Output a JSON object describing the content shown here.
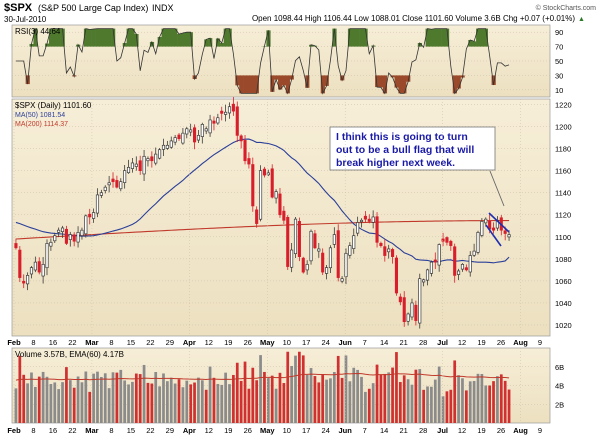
{
  "header": {
    "symbol": "$SPX",
    "name": "(S&P 500 Large Cap Index)",
    "exchange": "INDX",
    "date": "30-Jul-2010",
    "ohlc": "Open 1098.44  High 1106.44  Low 1088.01  Close 1101.60  Volume 3.6B  Chg +0.07 (+0.01%)",
    "chg_arrow": "▲",
    "copyright": "© StockCharts.com"
  },
  "colors": {
    "up": "#3a3a3a",
    "down": "#d81e2a",
    "ma50": "#2a3f9a",
    "ma200": "#c0392b",
    "rsi_above": "#4f7a2e",
    "rsi_below": "#9a4a2a",
    "panel_bg": "#f6edd8",
    "grid": "#c9bfa5",
    "annotation": "#1a1aa8",
    "volume_up": "#8b8b8b",
    "volume_down": "#d03030",
    "wedge": "#1f2fb0"
  },
  "rsi_panel": {
    "label": "RSI(3) 44.64",
    "ticks": [
      "90",
      "70",
      "50",
      "30",
      "10"
    ]
  },
  "price_panel": {
    "label": "$SPX (Daily) 1101.60",
    "legend": [
      {
        "text": "MA(50) 1081.54",
        "color_key": "ma50"
      },
      {
        "text": "MA(200) 1114.37",
        "color_key": "ma200"
      }
    ],
    "y_ticks": [
      "1220",
      "1200",
      "1180",
      "1160",
      "1140",
      "1120",
      "1100",
      "1080",
      "1060",
      "1040",
      "1020"
    ],
    "annotation_lines": [
      "I think this is going to turn",
      "out to be a bull flag that will",
      "break higher next week."
    ]
  },
  "volume_panel": {
    "label": "Volume 3.57B, EMA(60) 4.17B",
    "y_ticks": [
      "6B",
      "4B",
      "2B"
    ]
  },
  "x_axis": {
    "labels": [
      "Feb",
      "8",
      "16",
      "22",
      "Mar",
      "8",
      "15",
      "22",
      "29",
      "Apr",
      "12",
      "19",
      "26",
      "May",
      "10",
      "17",
      "24",
      "Jun",
      "7",
      "14",
      "21",
      "28",
      "Jul",
      "12",
      "19",
      "26",
      "Aug",
      "9"
    ]
  },
  "chart_data": {
    "type": "candlestick",
    "title": "$SPX (S&P 500 Large Cap Index) INDX",
    "period": "Daily",
    "date_range": [
      "2010-02-01",
      "2010-07-30"
    ],
    "ylim": [
      1010,
      1225
    ],
    "close": [
      1090,
      1063,
      1058,
      1065,
      1072,
      1077,
      1068,
      1075,
      1094,
      1095,
      1101,
      1106,
      1108,
      1094,
      1102,
      1096,
      1104,
      1106,
      1119,
      1118,
      1122,
      1138,
      1140,
      1145,
      1149,
      1150,
      1145,
      1150,
      1160,
      1163,
      1167,
      1166,
      1160,
      1173,
      1171,
      1169,
      1175,
      1179,
      1183,
      1183,
      1187,
      1190,
      1189,
      1194,
      1198,
      1197,
      1186,
      1192,
      1202,
      1198,
      1206,
      1203,
      1208,
      1212,
      1213,
      1218,
      1214,
      1192,
      1187,
      1169,
      1166,
      1128,
      1112,
      1160,
      1156,
      1158,
      1136,
      1141,
      1120,
      1115,
      1073,
      1088,
      1116,
      1082,
      1068,
      1075,
      1105,
      1090,
      1089,
      1068,
      1072,
      1090,
      1102,
      1063,
      1062,
      1085,
      1092,
      1101,
      1113,
      1115,
      1116,
      1114,
      1118,
      1095,
      1092,
      1083,
      1089,
      1082,
      1049,
      1041,
      1023,
      1030,
      1040,
      1024,
      1062,
      1061,
      1070,
      1077,
      1077,
      1093,
      1096,
      1095,
      1092,
      1065,
      1069,
      1075,
      1070,
      1083,
      1087,
      1104,
      1114,
      1116,
      1107,
      1106,
      1115,
      1106,
      1103,
      1102
    ],
    "ma50": {
      "start": 1113,
      "end": 1081.54
    },
    "ma200": {
      "start": 1098,
      "end": 1114.37
    },
    "rsi": {
      "value": 44.64,
      "levels": [
        70,
        50,
        30
      ]
    },
    "volume": {
      "last": "3.57B",
      "ema60": "4.17B",
      "ylim": [
        0,
        8
      ]
    }
  }
}
